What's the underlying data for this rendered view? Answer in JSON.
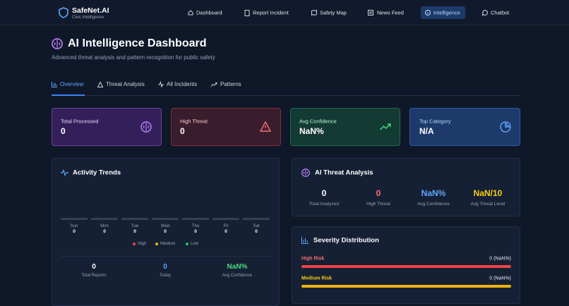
{
  "nav": {
    "brand": "SafeNet.AI",
    "tagline": "Civic Intelligence",
    "items": [
      "Dashboard",
      "Report Incident",
      "Safety Map",
      "News Feed",
      "Intelligence",
      "Chatbot"
    ]
  },
  "header": {
    "title": "AI Intelligence Dashboard",
    "subtitle": "Advanced threat analysis and pattern recognition for public safety"
  },
  "tabs": [
    "Overview",
    "Threat Analysis",
    "All Incidents",
    "Patterns"
  ],
  "cards": [
    {
      "label": "Total Processed",
      "value": "0"
    },
    {
      "label": "High Threat",
      "value": "0"
    },
    {
      "label": "Avg Confidence",
      "value": "NaN%"
    },
    {
      "label": "Top Category",
      "value": "N/A"
    }
  ],
  "activity": {
    "title": "Activity Trends",
    "days": [
      {
        "day": "Sun",
        "value": "0"
      },
      {
        "day": "Mon",
        "value": "0"
      },
      {
        "day": "Tue",
        "value": "0"
      },
      {
        "day": "Wed",
        "value": "0"
      },
      {
        "day": "Thu",
        "value": "0"
      },
      {
        "day": "Fri",
        "value": "0"
      },
      {
        "day": "Sat",
        "value": "0"
      }
    ],
    "legend": [
      "High",
      "Medium",
      "Low"
    ],
    "stats": [
      {
        "value": "0",
        "label": "Total Reports"
      },
      {
        "value": "0",
        "label": "Today"
      },
      {
        "value": "NaN%",
        "label": "Avg Confidence"
      }
    ]
  },
  "threat": {
    "title": "AI Threat Analysis",
    "stats": [
      {
        "value": "0",
        "label": "Total Analyzed"
      },
      {
        "value": "0",
        "label": "High Threat"
      },
      {
        "value": "NaN%",
        "label": "Avg Confidence"
      },
      {
        "value": "NaN/10",
        "label": "Avg Threat Level"
      }
    ]
  },
  "severity": {
    "title": "Severity Distribution",
    "rows": [
      {
        "label": "High Risk",
        "value": "0 (NaN%)"
      },
      {
        "label": "Medium Risk",
        "value": "0 (NaN%)"
      }
    ]
  }
}
